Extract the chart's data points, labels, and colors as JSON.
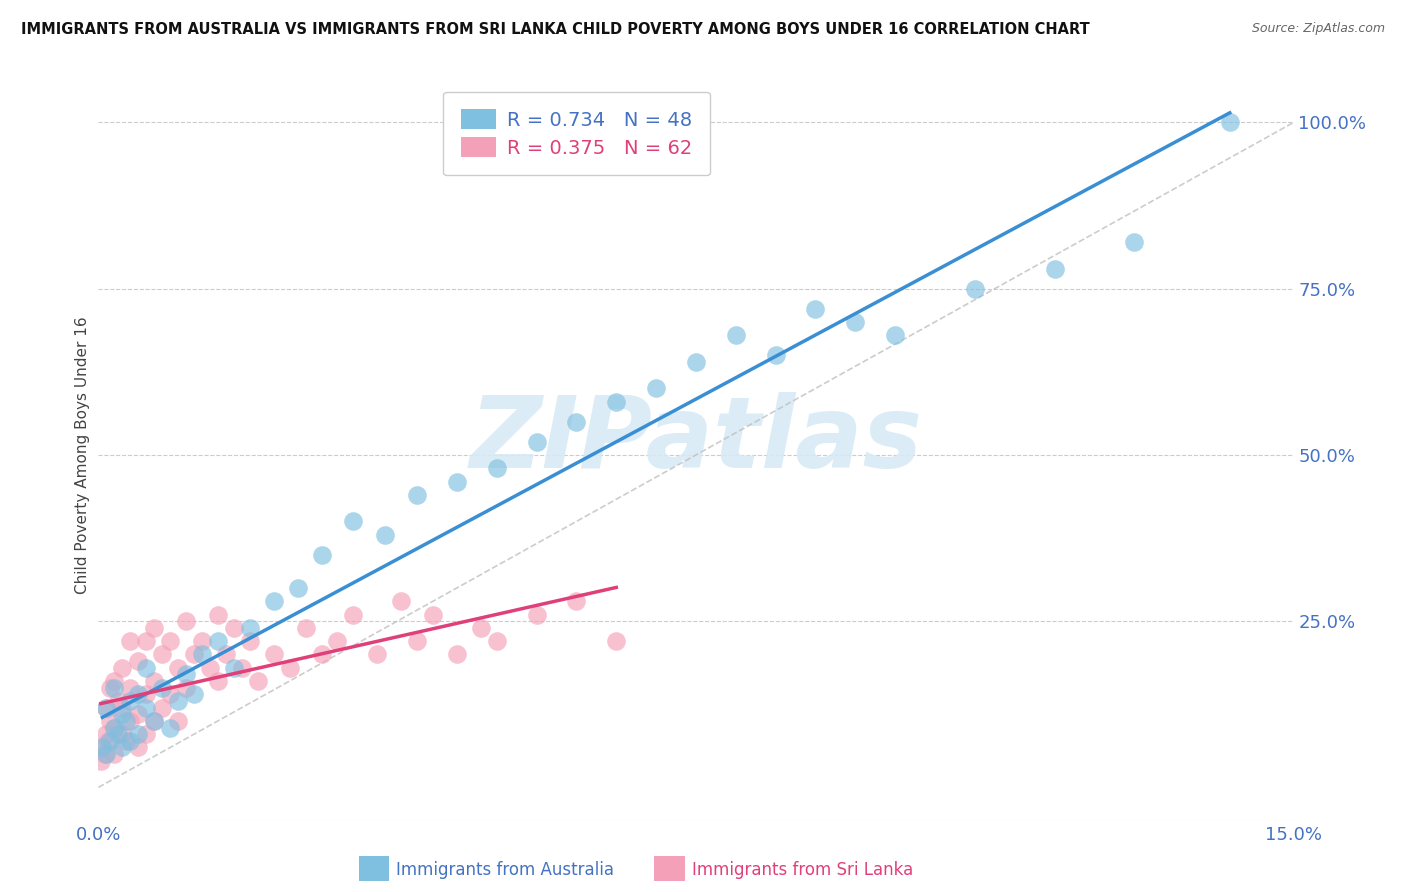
{
  "title": "IMMIGRANTS FROM AUSTRALIA VS IMMIGRANTS FROM SRI LANKA CHILD POVERTY AMONG BOYS UNDER 16 CORRELATION CHART",
  "source": "Source: ZipAtlas.com",
  "ylabel": "Child Poverty Among Boys Under 16",
  "xlim": [
    0.0,
    0.15
  ],
  "ylim": [
    -0.05,
    1.05
  ],
  "xticks": [
    0.0,
    0.05,
    0.1,
    0.15
  ],
  "xticklabels": [
    "0.0%",
    "",
    "",
    "15.0%"
  ],
  "yticks": [
    0.25,
    0.5,
    0.75,
    1.0
  ],
  "yticklabels": [
    "25.0%",
    "50.0%",
    "75.0%",
    "100.0%"
  ],
  "australia_color": "#7fbfdf",
  "srilanka_color": "#f4a0b8",
  "australia_line_color": "#3a8fd4",
  "srilanka_line_color": "#e0407a",
  "australia_R": 0.734,
  "australia_N": 48,
  "srilanka_R": 0.375,
  "srilanka_N": 62,
  "watermark": "ZIPatlas",
  "background_color": "#ffffff",
  "australia_scatter_x": [
    0.0005,
    0.001,
    0.001,
    0.0015,
    0.002,
    0.002,
    0.0025,
    0.003,
    0.003,
    0.0035,
    0.004,
    0.004,
    0.005,
    0.005,
    0.006,
    0.006,
    0.007,
    0.008,
    0.009,
    0.01,
    0.011,
    0.012,
    0.013,
    0.015,
    0.017,
    0.019,
    0.022,
    0.025,
    0.028,
    0.032,
    0.036,
    0.04,
    0.045,
    0.05,
    0.055,
    0.06,
    0.065,
    0.07,
    0.075,
    0.08,
    0.085,
    0.09,
    0.095,
    0.1,
    0.11,
    0.12,
    0.13,
    0.142
  ],
  "australia_scatter_y": [
    0.06,
    0.05,
    0.12,
    0.07,
    0.09,
    0.15,
    0.08,
    0.06,
    0.11,
    0.1,
    0.13,
    0.07,
    0.14,
    0.08,
    0.12,
    0.18,
    0.1,
    0.15,
    0.09,
    0.13,
    0.17,
    0.14,
    0.2,
    0.22,
    0.18,
    0.24,
    0.28,
    0.3,
    0.35,
    0.4,
    0.38,
    0.44,
    0.46,
    0.48,
    0.52,
    0.55,
    0.58,
    0.6,
    0.64,
    0.68,
    0.65,
    0.72,
    0.7,
    0.68,
    0.75,
    0.78,
    0.82,
    1.0
  ],
  "srilanka_scatter_x": [
    0.0003,
    0.0005,
    0.0008,
    0.001,
    0.001,
    0.0012,
    0.0015,
    0.0015,
    0.002,
    0.002,
    0.002,
    0.0025,
    0.003,
    0.003,
    0.003,
    0.0035,
    0.004,
    0.004,
    0.004,
    0.005,
    0.005,
    0.005,
    0.006,
    0.006,
    0.006,
    0.007,
    0.007,
    0.007,
    0.008,
    0.008,
    0.009,
    0.009,
    0.01,
    0.01,
    0.011,
    0.011,
    0.012,
    0.013,
    0.014,
    0.015,
    0.015,
    0.016,
    0.017,
    0.018,
    0.019,
    0.02,
    0.022,
    0.024,
    0.026,
    0.028,
    0.03,
    0.032,
    0.035,
    0.038,
    0.04,
    0.042,
    0.045,
    0.048,
    0.05,
    0.055,
    0.06,
    0.065
  ],
  "srilanka_scatter_y": [
    0.04,
    0.06,
    0.05,
    0.08,
    0.12,
    0.07,
    0.1,
    0.15,
    0.05,
    0.09,
    0.16,
    0.13,
    0.08,
    0.12,
    0.18,
    0.07,
    0.1,
    0.15,
    0.22,
    0.06,
    0.11,
    0.19,
    0.08,
    0.14,
    0.22,
    0.1,
    0.16,
    0.24,
    0.12,
    0.2,
    0.14,
    0.22,
    0.1,
    0.18,
    0.15,
    0.25,
    0.2,
    0.22,
    0.18,
    0.16,
    0.26,
    0.2,
    0.24,
    0.18,
    0.22,
    0.16,
    0.2,
    0.18,
    0.24,
    0.2,
    0.22,
    0.26,
    0.2,
    0.28,
    0.22,
    0.26,
    0.2,
    0.24,
    0.22,
    0.26,
    0.28,
    0.22
  ]
}
